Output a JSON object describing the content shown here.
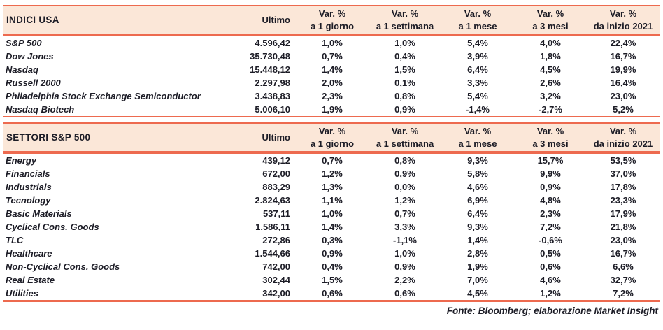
{
  "colors": {
    "accent": "#ED6A4F",
    "header_bg": "#FBE7D8",
    "text": "#1C1C26"
  },
  "columns": {
    "ultimo": "Ultimo",
    "var_label": "Var. %",
    "periods": [
      "a 1 giorno",
      "a 1 settimana",
      "a 1 mese",
      "a 3 mesi",
      "da inizio 2021"
    ]
  },
  "tables": [
    {
      "title": "INDICI USA",
      "rows": [
        {
          "name": "S&P 500",
          "ultimo": "4.596,42",
          "vars": [
            "1,0%",
            "1,0%",
            "5,4%",
            "4,0%",
            "22,4%"
          ]
        },
        {
          "name": "Dow Jones",
          "ultimo": "35.730,48",
          "vars": [
            "0,7%",
            "0,4%",
            "3,9%",
            "1,8%",
            "16,7%"
          ]
        },
        {
          "name": "Nasdaq",
          "ultimo": "15.448,12",
          "vars": [
            "1,4%",
            "1,5%",
            "6,4%",
            "4,5%",
            "19,9%"
          ]
        },
        {
          "name": "Russell 2000",
          "ultimo": "2.297,98",
          "vars": [
            "2,0%",
            "0,1%",
            "3,3%",
            "2,6%",
            "16,4%"
          ]
        },
        {
          "name": "Philadelphia Stock Exchange Semiconductor",
          "ultimo": "3.438,83",
          "vars": [
            "2,3%",
            "0,8%",
            "5,4%",
            "3,2%",
            "23,0%"
          ]
        },
        {
          "name": "Nasdaq Biotech",
          "ultimo": "5.006,10",
          "vars": [
            "1,9%",
            "0,9%",
            "-1,4%",
            "-2,7%",
            "5,2%"
          ]
        }
      ]
    },
    {
      "title": "SETTORI S&P 500",
      "rows": [
        {
          "name": "Energy",
          "ultimo": "439,12",
          "vars": [
            "0,7%",
            "0,8%",
            "9,3%",
            "15,7%",
            "53,5%"
          ]
        },
        {
          "name": "Financials",
          "ultimo": "672,00",
          "vars": [
            "1,2%",
            "0,9%",
            "5,8%",
            "9,9%",
            "37,0%"
          ]
        },
        {
          "name": "Industrials",
          "ultimo": "883,29",
          "vars": [
            "1,3%",
            "0,0%",
            "4,6%",
            "0,9%",
            "17,8%"
          ]
        },
        {
          "name": "Tecnology",
          "ultimo": "2.824,63",
          "vars": [
            "1,1%",
            "1,2%",
            "6,9%",
            "4,8%",
            "23,3%"
          ]
        },
        {
          "name": "Basic Materials",
          "ultimo": "537,11",
          "vars": [
            "1,0%",
            "0,7%",
            "6,4%",
            "2,3%",
            "17,9%"
          ]
        },
        {
          "name": "Cyclical Cons. Goods",
          "ultimo": "1.586,11",
          "vars": [
            "1,4%",
            "3,3%",
            "9,3%",
            "7,2%",
            "21,8%"
          ]
        },
        {
          "name": "TLC",
          "ultimo": "272,86",
          "vars": [
            "0,3%",
            "-1,1%",
            "1,4%",
            "-0,6%",
            "23,0%"
          ]
        },
        {
          "name": "Healthcare",
          "ultimo": "1.544,66",
          "vars": [
            "0,9%",
            "1,0%",
            "2,8%",
            "0,5%",
            "16,7%"
          ]
        },
        {
          "name": "Non-Cyclical Cons. Goods",
          "ultimo": "742,00",
          "vars": [
            "0,4%",
            "0,9%",
            "1,9%",
            "0,6%",
            "6,6%"
          ]
        },
        {
          "name": "Real Estate",
          "ultimo": "302,44",
          "vars": [
            "1,5%",
            "2,2%",
            "7,0%",
            "4,6%",
            "32,7%"
          ]
        },
        {
          "name": "Utilities",
          "ultimo": "342,00",
          "vars": [
            "0,6%",
            "0,6%",
            "4,5%",
            "1,2%",
            "7,2%"
          ]
        }
      ]
    }
  ],
  "source_note": "Fonte: Bloomberg; elaborazione Market Insight"
}
